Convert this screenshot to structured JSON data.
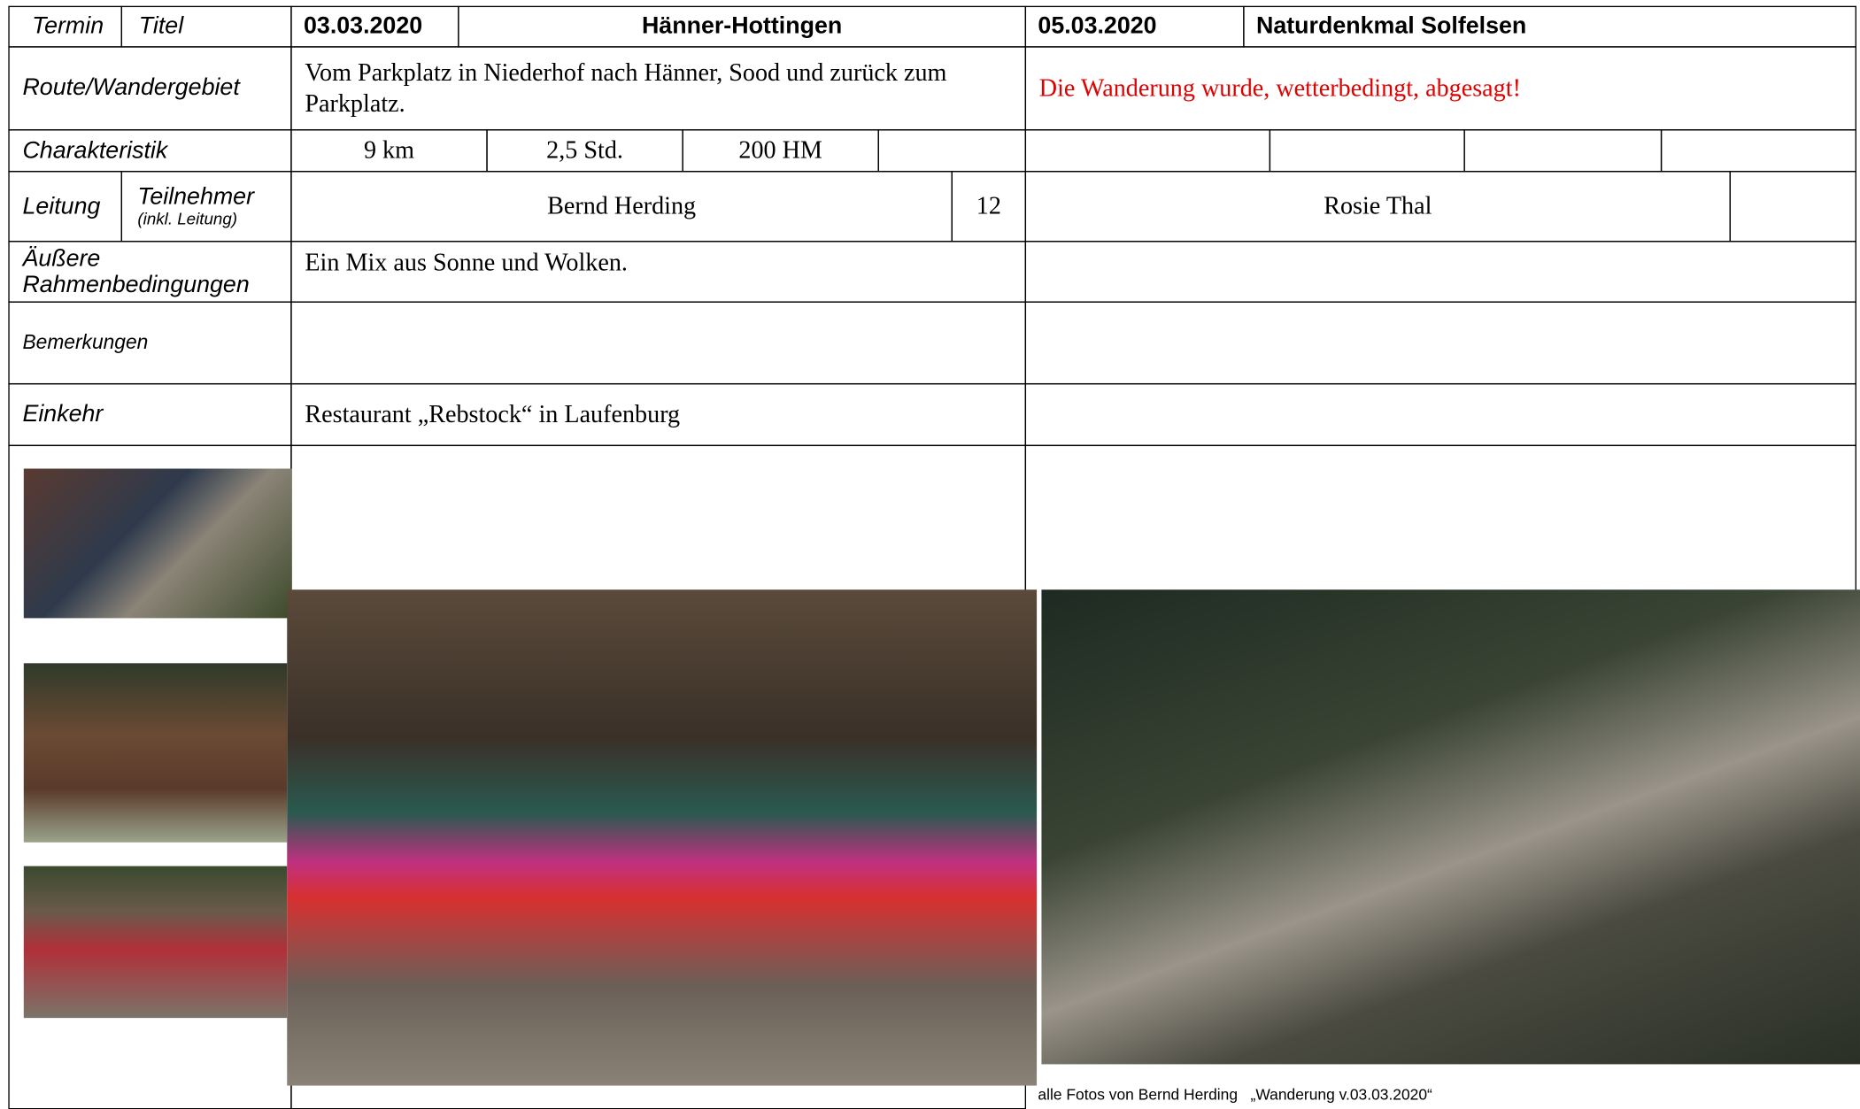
{
  "header": {
    "termin": "Termin",
    "titel": "Titel",
    "hike1_date": "03.03.2020",
    "hike1_title": "Hänner-Hottingen",
    "hike2_date": "05.03.2020",
    "hike2_title": "Naturdenkmal Solfelsen"
  },
  "route": {
    "label": "Route/Wandergebiet",
    "hike1": "Vom Parkplatz in Niederhof nach Hänner, Sood und zurück zum Parkplatz.",
    "hike2": "Die Wanderung wurde, wetterbedingt, abgesagt!"
  },
  "charakteristik": {
    "label": "Charakteristik",
    "hike1": [
      "9 km",
      "2,5 Std.",
      "200 HM"
    ]
  },
  "leitung": {
    "label": "Leitung",
    "teilnehmer": "Teilnehmer",
    "teilnehmer_note": "(inkl. Leitung)",
    "hike1_leader": "Bernd Herding",
    "hike1_count": "12",
    "hike2_leader": "Rosie Thal"
  },
  "rahmen": {
    "label": "Äußere Rahmenbedingungen",
    "hike1": "Ein Mix aus Sonne und Wolken."
  },
  "bemerkungen": {
    "label": "Bemerkungen"
  },
  "einkehr": {
    "label": "Einkehr",
    "hike1": "Restaurant „Rebstock“ in Laufenburg"
  },
  "caption": "alle Fotos von Bernd Herding   „Wanderung v.03.03.2020“"
}
